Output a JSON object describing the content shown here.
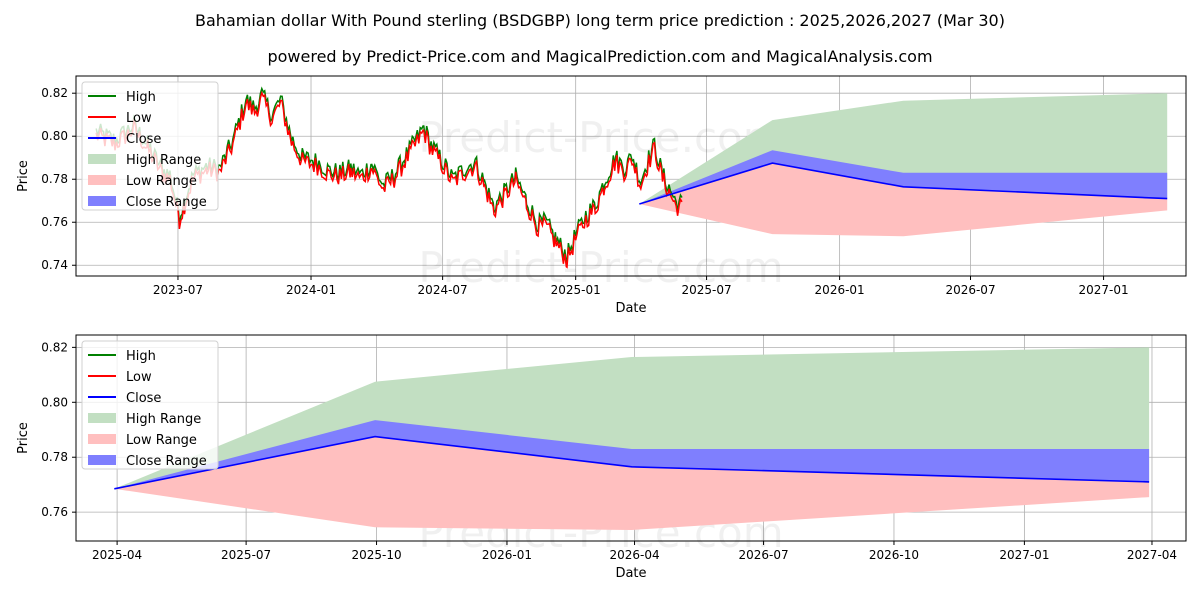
{
  "title_line1": "Bahamian dollar With Pound sterling (BSDGBP) long term price prediction : 2025,2026,2027 (Mar 30)",
  "title_line2": "powered by Predict-Price.com and MagicalPrediction.com and MagicalAnalysis.com",
  "watermark": "Predict-Price.com",
  "colors": {
    "high": "#008000",
    "low": "#ff0000",
    "close": "#0000ff",
    "high_range": "#c2dfc2",
    "low_range": "#ffbfbf",
    "close_range": "#7f7ffe"
  },
  "chart_data": [
    {
      "type": "line",
      "panel": "top",
      "xlabel": "Date",
      "ylabel": "Price",
      "xlim": [
        "2023-02-10",
        "2027-04-25"
      ],
      "ylim": [
        0.735,
        0.828
      ],
      "x_ticks": [
        {
          "date": "2023-07-01",
          "label": "2023-07"
        },
        {
          "date": "2024-01-01",
          "label": "2024-01"
        },
        {
          "date": "2024-07-01",
          "label": "2024-07"
        },
        {
          "date": "2025-01-01",
          "label": "2025-01"
        },
        {
          "date": "2025-07-01",
          "label": "2025-07"
        },
        {
          "date": "2026-01-01",
          "label": "2026-01"
        },
        {
          "date": "2026-07-01",
          "label": "2026-07"
        },
        {
          "date": "2027-01-01",
          "label": "2027-01"
        }
      ],
      "y_ticks": [
        {
          "value": 0.74,
          "label": "0.74"
        },
        {
          "value": 0.76,
          "label": "0.76"
        },
        {
          "value": 0.78,
          "label": "0.78"
        },
        {
          "value": 0.8,
          "label": "0.80"
        },
        {
          "value": 0.82,
          "label": "0.82"
        }
      ],
      "grid": true,
      "legend_position": "top-left",
      "legend": [
        "High",
        "Low",
        "Close",
        "High Range",
        "Low Range",
        "Close Range"
      ],
      "history_anchors": [
        [
          "2023-03-10",
          0.801
        ],
        [
          "2023-04-05",
          0.797
        ],
        [
          "2023-05-01",
          0.804
        ],
        [
          "2023-05-20",
          0.795
        ],
        [
          "2023-06-10",
          0.783
        ],
        [
          "2023-06-20",
          0.781
        ],
        [
          "2023-07-03",
          0.762
        ],
        [
          "2023-07-10",
          0.769
        ],
        [
          "2023-07-22",
          0.781
        ],
        [
          "2023-08-10",
          0.785
        ],
        [
          "2023-08-28",
          0.784
        ],
        [
          "2023-09-15",
          0.797
        ],
        [
          "2023-10-03",
          0.816
        ],
        [
          "2023-10-15",
          0.812
        ],
        [
          "2023-10-25",
          0.818
        ],
        [
          "2023-11-08",
          0.809
        ],
        [
          "2023-11-20",
          0.816
        ],
        [
          "2023-12-05",
          0.798
        ],
        [
          "2023-12-20",
          0.789
        ],
        [
          "2024-01-10",
          0.787
        ],
        [
          "2024-01-25",
          0.783
        ],
        [
          "2024-02-10",
          0.782
        ],
        [
          "2024-02-25",
          0.784
        ],
        [
          "2024-03-10",
          0.781
        ],
        [
          "2024-03-25",
          0.786
        ],
        [
          "2024-04-10",
          0.776
        ],
        [
          "2024-04-25",
          0.781
        ],
        [
          "2024-05-10",
          0.789
        ],
        [
          "2024-05-25",
          0.797
        ],
        [
          "2024-06-05",
          0.803
        ],
        [
          "2024-06-15",
          0.795
        ],
        [
          "2024-07-01",
          0.787
        ],
        [
          "2024-07-15",
          0.779
        ],
        [
          "2024-08-01",
          0.784
        ],
        [
          "2024-08-15",
          0.787
        ],
        [
          "2024-08-28",
          0.777
        ],
        [
          "2024-09-10",
          0.766
        ],
        [
          "2024-09-25",
          0.773
        ],
        [
          "2024-10-10",
          0.78
        ],
        [
          "2024-10-25",
          0.769
        ],
        [
          "2024-11-10",
          0.758
        ],
        [
          "2024-11-20",
          0.759
        ],
        [
          "2024-12-05",
          0.751
        ],
        [
          "2024-12-20",
          0.743
        ],
        [
          "2025-01-01",
          0.753
        ],
        [
          "2025-01-15",
          0.762
        ],
        [
          "2025-01-28",
          0.767
        ],
        [
          "2025-02-10",
          0.778
        ],
        [
          "2025-02-25",
          0.789
        ],
        [
          "2025-03-10",
          0.784
        ],
        [
          "2025-03-20",
          0.79
        ],
        [
          "2025-04-01",
          0.778
        ],
        [
          "2025-04-10",
          0.787
        ],
        [
          "2025-04-20",
          0.795
        ],
        [
          "2025-05-01",
          0.781
        ],
        [
          "2025-05-10",
          0.775
        ],
        [
          "2025-05-20",
          0.768
        ],
        [
          "2025-05-30",
          0.768
        ]
      ],
      "forecast": {
        "dates": [
          "2025-03-30",
          "2025-09-30",
          "2026-03-30",
          "2027-03-30"
        ],
        "close": [
          0.7685,
          0.7875,
          0.7765,
          0.771
        ],
        "close_range_high": [
          0.7685,
          0.7935,
          0.783,
          0.783
        ],
        "high_range_upper": [
          0.7685,
          0.8075,
          0.8165,
          0.82
        ],
        "low_range_lower": [
          0.7685,
          0.7545,
          0.7535,
          0.7655
        ]
      }
    },
    {
      "type": "line",
      "panel": "bottom",
      "xlabel": "Date",
      "ylabel": "Price",
      "xlim": [
        "2025-03-03",
        "2027-04-25"
      ],
      "ylim": [
        0.7495,
        0.8245
      ],
      "x_ticks": [
        {
          "date": "2025-04-01",
          "label": "2025-04"
        },
        {
          "date": "2025-07-01",
          "label": "2025-07"
        },
        {
          "date": "2025-10-01",
          "label": "2025-10"
        },
        {
          "date": "2026-01-01",
          "label": "2026-01"
        },
        {
          "date": "2026-04-01",
          "label": "2026-04"
        },
        {
          "date": "2026-07-01",
          "label": "2026-07"
        },
        {
          "date": "2026-10-01",
          "label": "2026-10"
        },
        {
          "date": "2027-01-01",
          "label": "2027-01"
        },
        {
          "date": "2027-04-01",
          "label": "2027-04"
        }
      ],
      "y_ticks": [
        {
          "value": 0.76,
          "label": "0.76"
        },
        {
          "value": 0.78,
          "label": "0.78"
        },
        {
          "value": 0.8,
          "label": "0.80"
        },
        {
          "value": 0.82,
          "label": "0.82"
        }
      ],
      "grid": true,
      "legend_position": "top-left",
      "legend": [
        "High",
        "Low",
        "Close",
        "High Range",
        "Low Range",
        "Close Range"
      ],
      "forecast": {
        "dates": [
          "2025-03-30",
          "2025-09-30",
          "2026-03-30",
          "2027-03-30"
        ],
        "close": [
          0.7685,
          0.7875,
          0.7765,
          0.771
        ],
        "close_range_high": [
          0.7685,
          0.7935,
          0.783,
          0.783
        ],
        "high_range_upper": [
          0.7685,
          0.8075,
          0.8165,
          0.82
        ],
        "low_range_lower": [
          0.7685,
          0.7545,
          0.7535,
          0.7655
        ]
      }
    }
  ]
}
